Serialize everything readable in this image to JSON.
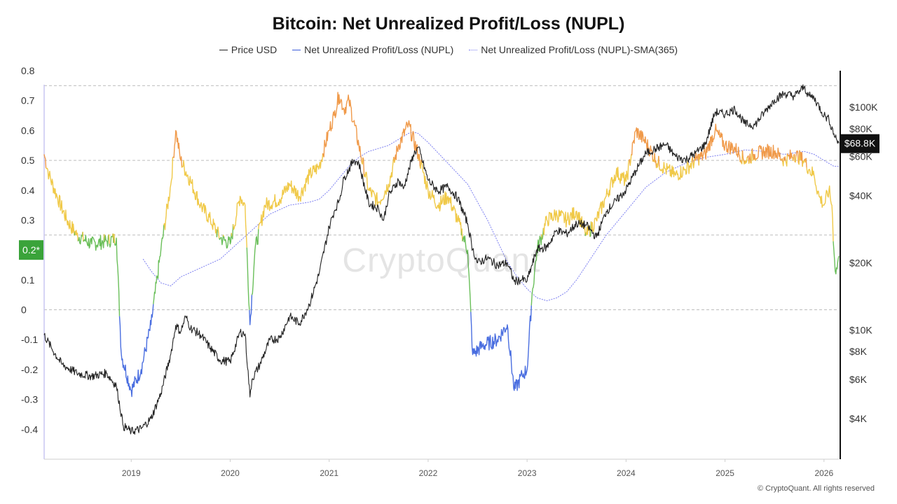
{
  "page": {
    "title": "Bitcoin: Net Unrealized Profit/Loss (NUPL)",
    "watermark": "CryptoQuant",
    "copyright": "© CryptoQuant. All rights reserved"
  },
  "legend": [
    {
      "label": "Price USD",
      "color": "#222222",
      "style": "solid"
    },
    {
      "label": "Net Unrealized Profit/Loss (NUPL)",
      "color": "#3b5bdb",
      "style": "solid"
    },
    {
      "label": "Net Unrealized Profit/Loss (NUPL)-SMA(365)",
      "color": "#7b7ef0",
      "style": "dotted"
    }
  ],
  "chart_data": {
    "type": "line",
    "title": "Bitcoin: Net Unrealized Profit/Loss (NUPL)",
    "x_range": [
      2018.12,
      2026.15
    ],
    "left_axis": {
      "ylim": [
        -0.5,
        0.8
      ],
      "ticks": [
        0.8,
        0.7,
        0.6,
        0.5,
        0.4,
        0.3,
        0.2,
        0.1,
        0,
        -0.1,
        -0.2,
        -0.3,
        -0.4
      ],
      "tick_labels": [
        "0.8",
        "0.7",
        "0.6",
        "0.5",
        "0.4",
        "0.3",
        "0.2*",
        "0.1",
        "0",
        "-0.1",
        "-0.2",
        "-0.3",
        "-0.4"
      ],
      "highlight_tick": "0.2*"
    },
    "right_axis": {
      "scale": "log",
      "ticks": [
        100000,
        80000,
        60000,
        40000,
        20000,
        10000,
        8000,
        6000,
        4000
      ],
      "tick_labels": [
        "$100K",
        "$80K",
        "$60K",
        "$40K",
        "$20K",
        "$10K",
        "$8K",
        "$6K",
        "$4K"
      ],
      "current_value_label": "$68.8K"
    },
    "x_ticks": [
      2019,
      2020,
      2021,
      2022,
      2023,
      2024,
      2025,
      2026
    ],
    "x_tick_labels": [
      "2019",
      "2020",
      "2021",
      "2022",
      "2023",
      "2024",
      "2025",
      "2026"
    ],
    "reference_lines": [
      0.75,
      0.5,
      0.25,
      0
    ],
    "zone_colors": {
      "capitulation": "#4a6ee0",
      "hope_fear": "#6abf5a",
      "optimism_anxiety": "#f0c948",
      "belief_denial": "#f09a4a"
    },
    "series": [
      {
        "name": "Price USD",
        "axis": "right",
        "x": [
          2018.12,
          2018.2,
          2018.3,
          2018.45,
          2018.6,
          2018.75,
          2018.85,
          2018.92,
          2019.0,
          2019.1,
          2019.2,
          2019.3,
          2019.4,
          2019.45,
          2019.5,
          2019.55,
          2019.6,
          2019.7,
          2019.8,
          2019.9,
          2020.0,
          2020.1,
          2020.15,
          2020.2,
          2020.22,
          2020.3,
          2020.4,
          2020.5,
          2020.6,
          2020.7,
          2020.8,
          2020.9,
          2021.0,
          2021.05,
          2021.1,
          2021.15,
          2021.25,
          2021.3,
          2021.4,
          2021.5,
          2021.55,
          2021.6,
          2021.7,
          2021.75,
          2021.85,
          2021.9,
          2022.0,
          2022.1,
          2022.2,
          2022.3,
          2022.4,
          2022.45,
          2022.5,
          2022.6,
          2022.7,
          2022.8,
          2022.87,
          2022.95,
          2023.0,
          2023.1,
          2023.2,
          2023.3,
          2023.4,
          2023.5,
          2023.6,
          2023.7,
          2023.8,
          2023.9,
          2024.0,
          2024.1,
          2024.2,
          2024.3,
          2024.4,
          2024.5,
          2024.6,
          2024.7,
          2024.8,
          2024.9,
          2025.0,
          2025.1,
          2025.2,
          2025.3,
          2025.4,
          2025.5,
          2025.6,
          2025.7,
          2025.8,
          2025.85,
          2025.9,
          2026.0,
          2026.05,
          2026.1,
          2026.15
        ],
        "values": [
          9500,
          8200,
          7000,
          6400,
          6200,
          6400,
          5600,
          3700,
          3500,
          3600,
          4000,
          5200,
          7800,
          10500,
          9800,
          11500,
          10200,
          9500,
          8300,
          7300,
          7200,
          9800,
          9600,
          5000,
          6000,
          7000,
          9000,
          9200,
          11500,
          10700,
          13000,
          18000,
          29000,
          34000,
          38000,
          48000,
          58000,
          56000,
          37000,
          35000,
          31000,
          40000,
          47000,
          43000,
          61000,
          66000,
          47000,
          42000,
          44000,
          39000,
          30000,
          23000,
          20000,
          21000,
          19500,
          20000,
          16500,
          16800,
          16600,
          23000,
          23500,
          28000,
          27000,
          30000,
          29500,
          26000,
          34000,
          38000,
          42500,
          52000,
          62000,
          65000,
          68000,
          60000,
          58000,
          62000,
          68000,
          95000,
          93000,
          98000,
          84000,
          83000,
          95000,
          108000,
          115000,
          112000,
          123000,
          112000,
          110000,
          92000,
          88000,
          76000,
          68800
        ]
      },
      {
        "name": "Net Unrealized Profit/Loss (NUPL)",
        "axis": "left",
        "x": [
          2018.12,
          2018.17,
          2018.25,
          2018.35,
          2018.45,
          2018.6,
          2018.75,
          2018.85,
          2018.9,
          2019.0,
          2019.1,
          2019.2,
          2019.3,
          2019.4,
          2019.45,
          2019.5,
          2019.6,
          2019.7,
          2019.8,
          2019.9,
          2020.0,
          2020.1,
          2020.15,
          2020.2,
          2020.25,
          2020.35,
          2020.5,
          2020.6,
          2020.7,
          2020.8,
          2020.9,
          2021.0,
          2021.05,
          2021.1,
          2021.15,
          2021.2,
          2021.3,
          2021.4,
          2021.5,
          2021.6,
          2021.7,
          2021.8,
          2021.9,
          2022.0,
          2022.1,
          2022.2,
          2022.3,
          2022.4,
          2022.45,
          2022.55,
          2022.7,
          2022.8,
          2022.87,
          2022.95,
          2023.0,
          2023.05,
          2023.1,
          2023.2,
          2023.3,
          2023.4,
          2023.5,
          2023.6,
          2023.7,
          2023.8,
          2023.9,
          2024.0,
          2024.1,
          2024.2,
          2024.3,
          2024.4,
          2024.5,
          2024.6,
          2024.7,
          2024.8,
          2024.9,
          2025.0,
          2025.1,
          2025.2,
          2025.3,
          2025.4,
          2025.5,
          2025.6,
          2025.7,
          2025.8,
          2025.85,
          2025.9,
          2025.95,
          2026.0,
          2026.05,
          2026.08,
          2026.1,
          2026.12,
          2026.15
        ],
        "values": [
          0.52,
          0.45,
          0.38,
          0.3,
          0.25,
          0.22,
          0.23,
          0.24,
          -0.15,
          -0.27,
          -0.2,
          -0.05,
          0.2,
          0.42,
          0.6,
          0.5,
          0.43,
          0.35,
          0.3,
          0.24,
          0.22,
          0.38,
          0.35,
          -0.05,
          0.2,
          0.35,
          0.37,
          0.42,
          0.38,
          0.45,
          0.48,
          0.6,
          0.65,
          0.72,
          0.67,
          0.7,
          0.55,
          0.4,
          0.36,
          0.42,
          0.55,
          0.62,
          0.52,
          0.4,
          0.35,
          0.38,
          0.3,
          0.2,
          -0.15,
          -0.12,
          -0.1,
          -0.05,
          -0.27,
          -0.22,
          -0.2,
          0.05,
          0.2,
          0.3,
          0.32,
          0.3,
          0.33,
          0.25,
          0.3,
          0.38,
          0.46,
          0.43,
          0.6,
          0.56,
          0.5,
          0.47,
          0.45,
          0.47,
          0.5,
          0.52,
          0.6,
          0.55,
          0.54,
          0.5,
          0.52,
          0.53,
          0.53,
          0.5,
          0.52,
          0.5,
          0.47,
          0.45,
          0.38,
          0.35,
          0.4,
          0.35,
          0.2,
          0.12,
          0.18
        ]
      },
      {
        "name": "Net Unrealized Profit/Loss (NUPL)-SMA(365)",
        "axis": "left",
        "x": [
          2019.12,
          2019.2,
          2019.3,
          2019.4,
          2019.5,
          2019.7,
          2019.9,
          2020.0,
          2020.2,
          2020.4,
          2020.6,
          2020.8,
          2020.9,
          2021.0,
          2021.1,
          2021.2,
          2021.3,
          2021.4,
          2021.6,
          2021.7,
          2021.8,
          2021.85,
          2021.9,
          2022.0,
          2022.2,
          2022.4,
          2022.6,
          2022.8,
          2022.9,
          2023.0,
          2023.1,
          2023.2,
          2023.3,
          2023.4,
          2023.5,
          2023.6,
          2023.8,
          2024.0,
          2024.2,
          2024.4,
          2024.6,
          2024.8,
          2025.0,
          2025.2,
          2025.4,
          2025.6,
          2025.8,
          2025.9,
          2026.0,
          2026.1,
          2026.15
        ],
        "values": [
          0.17,
          0.13,
          0.09,
          0.08,
          0.11,
          0.14,
          0.17,
          0.2,
          0.26,
          0.32,
          0.35,
          0.36,
          0.37,
          0.4,
          0.44,
          0.48,
          0.51,
          0.53,
          0.55,
          0.57,
          0.59,
          0.595,
          0.59,
          0.56,
          0.49,
          0.42,
          0.3,
          0.16,
          0.11,
          0.07,
          0.04,
          0.03,
          0.04,
          0.06,
          0.1,
          0.15,
          0.25,
          0.33,
          0.41,
          0.46,
          0.49,
          0.51,
          0.52,
          0.535,
          0.53,
          0.52,
          0.53,
          0.52,
          0.5,
          0.48,
          0.48
        ]
      }
    ]
  }
}
